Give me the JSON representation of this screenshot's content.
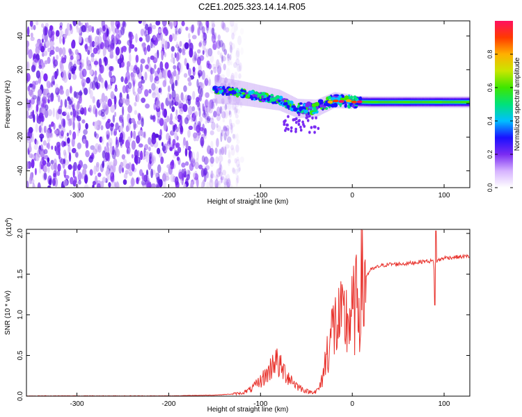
{
  "title": "C2E1.2025.323.14.14.R05",
  "chart_data": [
    {
      "type": "heatmap",
      "xlabel": "Height of straight line (km)",
      "ylabel": "Frequency (Hz)",
      "xlim": [
        -355,
        128
      ],
      "ylim": [
        -50,
        49
      ],
      "xticks": [
        -300,
        -200,
        -100,
        0,
        100
      ],
      "yticks": [
        -40,
        -20,
        0,
        20,
        40
      ],
      "noise_region_x": [
        -355,
        -145
      ],
      "signal_trace": {
        "x": [
          -150,
          -120,
          -100,
          -80,
          -60,
          -40,
          -20,
          0,
          20,
          60,
          100,
          128
        ],
        "y": [
          8,
          6,
          4,
          2,
          -3,
          -3,
          2,
          1,
          0.8,
          0.8,
          0.8,
          0.8
        ]
      },
      "colorbar": {
        "label": "Normalized spectral amplitude",
        "range": [
          0.0,
          1.0
        ],
        "ticks": [
          0.0,
          0.2,
          0.4,
          0.6,
          0.8
        ],
        "tick_labels": [
          "0.0",
          "0.2",
          "0.4",
          "0.6",
          "0.8"
        ]
      }
    },
    {
      "type": "line",
      "xlabel": "Height of straight line (km)",
      "ylabel": "SNR (10 * v/v)",
      "scale_label": "(x10",
      "scale_exponent": "4",
      "scale_close": ")",
      "xlim": [
        -355,
        128
      ],
      "ylim": [
        0,
        2.05
      ],
      "xticks": [
        -300,
        -200,
        -100,
        0,
        100
      ],
      "yticks": [
        0.0,
        0.5,
        1.0,
        1.5,
        2.0
      ],
      "ytick_labels": [
        "0.0",
        "0.5",
        "1.0",
        "1.5",
        "2.0"
      ],
      "color": "#e8302a",
      "series": [
        {
          "name": "SNR",
          "x": [
            -355,
            -200,
            -150,
            -120,
            -110,
            -100,
            -90,
            -85,
            -80,
            -70,
            -60,
            -50,
            -45,
            -40,
            -35,
            -30,
            -25,
            -20,
            -15,
            -10,
            -5,
            0,
            5,
            10,
            20,
            30,
            40,
            60,
            80,
            88,
            90,
            92,
            100,
            128
          ],
          "y": [
            0.0,
            0.0,
            0.01,
            0.03,
            0.07,
            0.15,
            0.25,
            0.38,
            0.3,
            0.2,
            0.1,
            0.05,
            0.04,
            0.05,
            0.12,
            0.4,
            0.75,
            0.9,
            0.95,
            0.95,
            1.0,
            1.05,
            1.2,
            1.4,
            1.55,
            1.6,
            1.62,
            1.63,
            1.66,
            1.66,
            1.5,
            1.66,
            1.7,
            1.72
          ]
        }
      ]
    }
  ]
}
